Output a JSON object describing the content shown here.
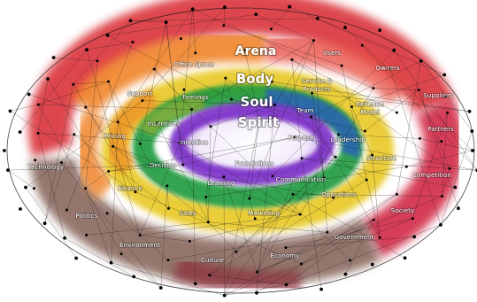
{
  "rings": [
    {
      "key": "arena",
      "label": "Arena",
      "color": "#d8262e"
    },
    {
      "key": "body",
      "label": "Body",
      "color": "#e7c518"
    },
    {
      "key": "soul",
      "label": "Soul",
      "color": "#1f9a3d"
    },
    {
      "key": "spirit",
      "label": "Spirit",
      "color": "#7a2fc7"
    }
  ],
  "colors": {
    "arena_red": "#d8262e",
    "arena_orange": "#ef7d1d",
    "arena_brown": "#7a5448",
    "body_yellow": "#e7c518",
    "soul_green": "#1f9a3d",
    "soul_blue": "#2b5fbf",
    "spirit_purple": "#7a2fc7",
    "network_line": "#1a1a1a",
    "node": "#000000"
  },
  "labels": {
    "users": "Users",
    "owners": "Owners",
    "suppliers": "Suppliers",
    "partners": "Partners",
    "competition": "Competition",
    "society": "Society",
    "government": "Government",
    "economy": "Economy",
    "culture": "Culture",
    "environment": "Environment",
    "politics": "Politics",
    "technology": "Technology",
    "support": "Support",
    "office_space": "Office Space",
    "pricing": "Pricing",
    "finance": "Finance",
    "sales": "Sales",
    "marketing": "Marketing",
    "operations": "Operations",
    "structure": "Structure",
    "revenue_model_1": "Revenue",
    "revenue_model_2": "Model",
    "service_products_1": "Service &",
    "service_products_2": "Products",
    "team": "Team",
    "leadership": "Leadership",
    "communication": "Communication",
    "learning": "Learning",
    "decision": "Decision",
    "incentives": "Incentives",
    "feelings": "Feelings",
    "intention": "Intention",
    "purpose": "Purpose",
    "foundations": "Foundations"
  }
}
